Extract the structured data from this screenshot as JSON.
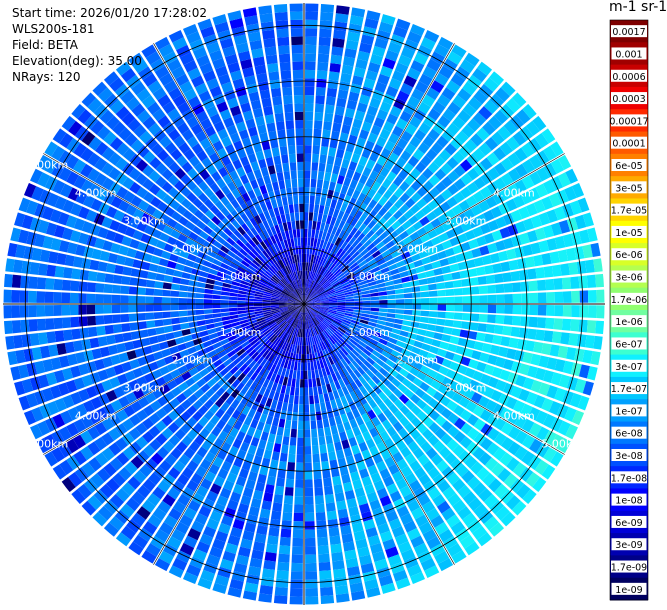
{
  "header": {
    "start_time": "Start time: 2026/01/20 17:28:02",
    "instrument": "WLS200s-181",
    "field": "Field: BETA",
    "elevation": "Elevation(deg): 35.00",
    "nrays": "NRays: 120"
  },
  "colorbar": {
    "title": "m-1 sr-1",
    "labels": [
      "0.0017",
      "0.001",
      "0.0006",
      "0.0003",
      "0.00017",
      "0.0001",
      "6e-05",
      "3e-05",
      "1.7e-05",
      "1e-05",
      "6e-06",
      "3e-06",
      "1.7e-06",
      "1e-06",
      "6e-07",
      "3e-07",
      "1.7e-07",
      "1e-07",
      "6e-08",
      "3e-08",
      "1.7e-08",
      "1e-08",
      "6e-09",
      "3e-09",
      "1.7e-09",
      "1e-09"
    ],
    "colors": [
      "#7f0000",
      "#a00000",
      "#c80000",
      "#f00000",
      "#ff2a00",
      "#ff5a00",
      "#ff8000",
      "#ffaa00",
      "#ffd400",
      "#ffff00",
      "#d8ff28",
      "#b4ff50",
      "#90ff70",
      "#70ffa0",
      "#3cffd0",
      "#10f0ff",
      "#00c8ff",
      "#00a0ff",
      "#0078ff",
      "#0050ff",
      "#0028ff",
      "#0000ff",
      "#0000d8",
      "#0000b0",
      "#000088",
      "#000060"
    ]
  },
  "chart_data": {
    "type": "heatmap",
    "projection": "polar PPI",
    "max_range_km": 5.4,
    "nrays": 120,
    "range_rings_km": [
      1,
      2,
      3,
      4,
      5
    ],
    "range_ring_labels": [
      "1.00km",
      "2.00km",
      "3.00km",
      "4.00km",
      "5.00km"
    ],
    "azimuth_lines_deg": [
      0,
      30,
      60,
      90,
      120,
      150,
      180,
      210,
      240,
      270,
      300,
      330
    ],
    "value_min": 1e-09,
    "value_max": 0.0017,
    "colorscale": "log",
    "dominant_values": {
      "near_center": "3e-09 to 1e-08",
      "west_and_south": "1e-08 to 3e-08",
      "east_and_northeast": "3e-08 to 1e-07",
      "southeast_edge": "up to 1.7e-07"
    }
  }
}
